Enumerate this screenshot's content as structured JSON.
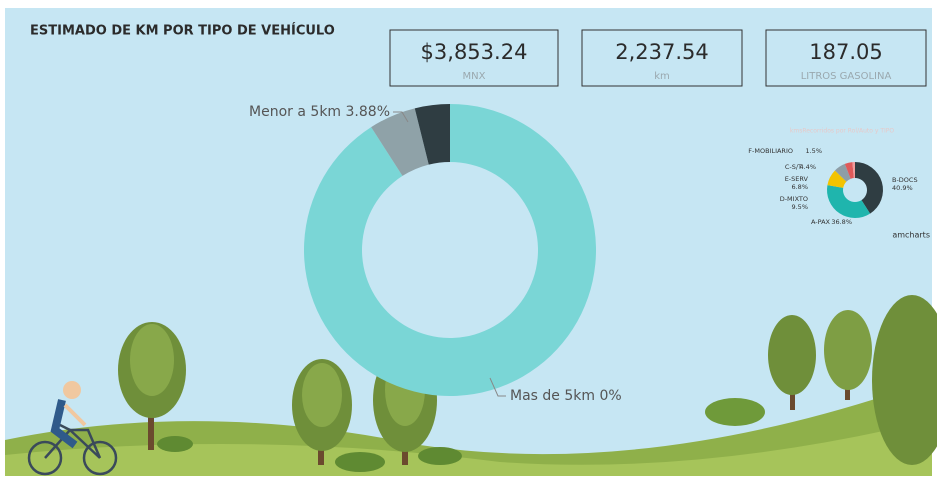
{
  "title": "ESTIMADO DE KM POR TIPO DE VEHÍCULO",
  "kpis": [
    {
      "value": "$3,853.24",
      "unit": "MNX"
    },
    {
      "value": "2,237.54",
      "unit": "km"
    },
    {
      "value": "187.05",
      "unit": "LITROS GASOLINA"
    }
  ],
  "chart_data": [
    {
      "type": "pie",
      "values": [
        90.92,
        5.2,
        3.88
      ],
      "colors": [
        "#7ad6d6",
        "#8fa2a8",
        "#2f3d42"
      ],
      "annotations": [
        "Menor a 5km 3.88%",
        "Mas de 5km 0%"
      ]
    },
    {
      "type": "pie",
      "title": "kmsRecorridos por Rol/Auto y TIPO",
      "categories": [
        "B-DOCS",
        "A-PAX",
        "D-MIXTO",
        "E-SERV",
        "C-S/T",
        "F-MOBILIARIO"
      ],
      "values": [
        40.9,
        36.8,
        9.5,
        6.8,
        4.4,
        1.5
      ],
      "value_labels": [
        "40.9%",
        "36.8%",
        "9.5%",
        "6.8%",
        "4.4%",
        "1.5%"
      ],
      "colors": [
        "#2f3d42",
        "#1fb5ad",
        "#f2c300",
        "#8e9ea6",
        "#e05a5a",
        "#f29a9a"
      ],
      "watermark": "amcharts"
    }
  ]
}
